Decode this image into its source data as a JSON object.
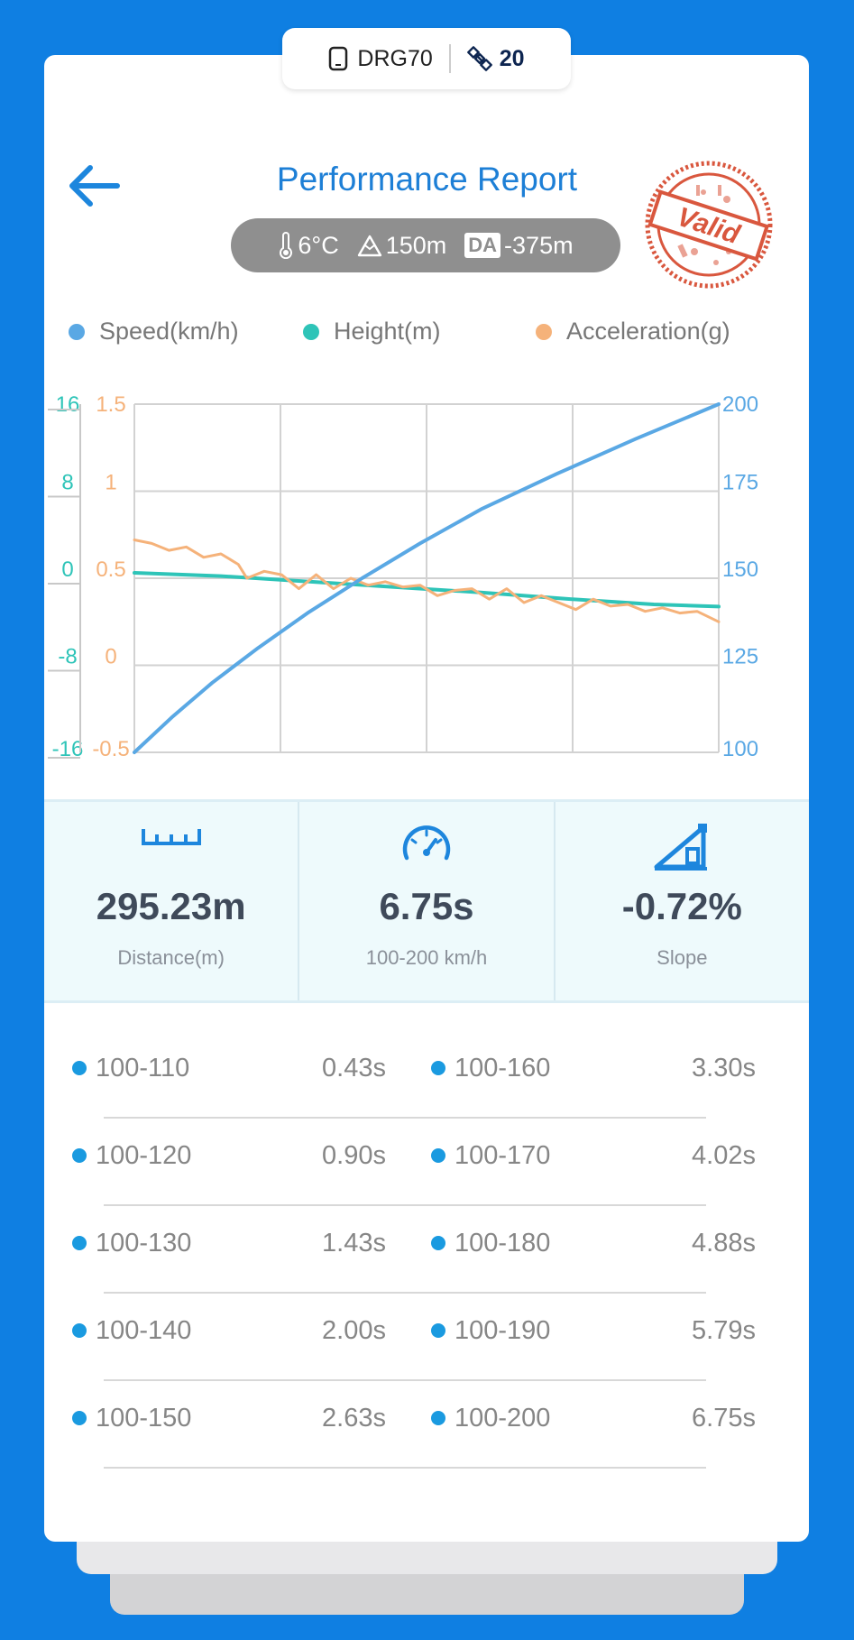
{
  "device": {
    "name": "DRG70",
    "satellites": "20"
  },
  "header": {
    "title": "Performance Report",
    "stamp_text": "Valid"
  },
  "conditions": {
    "temperature": "6°C",
    "altitude": "150m",
    "da_label": "DA",
    "density_altitude": "-375m"
  },
  "legend": [
    {
      "label": "Speed(km/h)",
      "color": "#5aa8e4"
    },
    {
      "label": "Height(m)",
      "color": "#2ec4b8"
    },
    {
      "label": "Acceleration(g)",
      "color": "#f5b27a"
    }
  ],
  "chart_data": {
    "type": "line",
    "axes": {
      "height_ticks": [
        "16",
        "8",
        "0",
        "-8",
        "-16"
      ],
      "height_range": [
        -16,
        16
      ],
      "acceleration_ticks": [
        "1.5",
        "1",
        "0.5",
        "0",
        "-0.5"
      ],
      "acceleration_range": [
        -0.5,
        1.5
      ],
      "speed_ticks": [
        "200",
        "175",
        "150",
        "125",
        "100"
      ],
      "speed_range": [
        100,
        200
      ],
      "x_range": [
        0,
        6.75
      ],
      "grid": true
    },
    "series": [
      {
        "name": "Speed(km/h)",
        "color": "#5aa8e4",
        "axis": "speed",
        "x": [
          0,
          0.43,
          0.9,
          1.43,
          2.0,
          2.63,
          3.3,
          4.02,
          4.88,
          5.79,
          6.75
        ],
        "y": [
          100,
          110,
          120,
          130,
          140,
          150,
          160,
          170,
          180,
          190,
          200
        ]
      },
      {
        "name": "Height(m)",
        "color": "#2ec4b8",
        "axis": "height",
        "x": [
          0,
          1,
          2,
          3,
          4,
          5,
          6,
          6.75
        ],
        "y": [
          0.5,
          0.2,
          -0.3,
          -0.8,
          -1.3,
          -1.9,
          -2.4,
          -2.6
        ]
      },
      {
        "name": "Acceleration(g)",
        "color": "#f5b27a",
        "axis": "acceleration",
        "x": [
          0,
          0.2,
          0.4,
          0.6,
          0.8,
          1.0,
          1.2,
          1.3,
          1.5,
          1.7,
          1.9,
          2.1,
          2.3,
          2.5,
          2.7,
          2.9,
          3.1,
          3.3,
          3.5,
          3.7,
          3.9,
          4.1,
          4.3,
          4.5,
          4.7,
          4.9,
          5.1,
          5.3,
          5.5,
          5.7,
          5.9,
          6.1,
          6.3,
          6.5,
          6.75
        ],
        "y": [
          0.72,
          0.7,
          0.66,
          0.68,
          0.62,
          0.64,
          0.58,
          0.5,
          0.54,
          0.52,
          0.44,
          0.52,
          0.44,
          0.5,
          0.46,
          0.48,
          0.45,
          0.46,
          0.4,
          0.43,
          0.44,
          0.38,
          0.44,
          0.36,
          0.4,
          0.36,
          0.32,
          0.38,
          0.34,
          0.35,
          0.31,
          0.33,
          0.3,
          0.31,
          0.25
        ]
      }
    ]
  },
  "stats": [
    {
      "value": "295.23m",
      "label": "Distance(m)",
      "icon": "ruler-icon"
    },
    {
      "value": "6.75s",
      "label": "100-200 km/h",
      "icon": "speedometer-icon"
    },
    {
      "value": "-0.72%",
      "label": "Slope",
      "icon": "slope-icon"
    }
  ],
  "splits": [
    {
      "range": "100-110",
      "time": "0.43s"
    },
    {
      "range": "100-120",
      "time": "0.90s"
    },
    {
      "range": "100-130",
      "time": "1.43s"
    },
    {
      "range": "100-140",
      "time": "2.00s"
    },
    {
      "range": "100-150",
      "time": "2.63s"
    },
    {
      "range": "100-160",
      "time": "3.30s"
    },
    {
      "range": "100-170",
      "time": "4.02s"
    },
    {
      "range": "100-180",
      "time": "4.88s"
    },
    {
      "range": "100-190",
      "time": "5.79s"
    },
    {
      "range": "100-200",
      "time": "6.75s"
    }
  ]
}
